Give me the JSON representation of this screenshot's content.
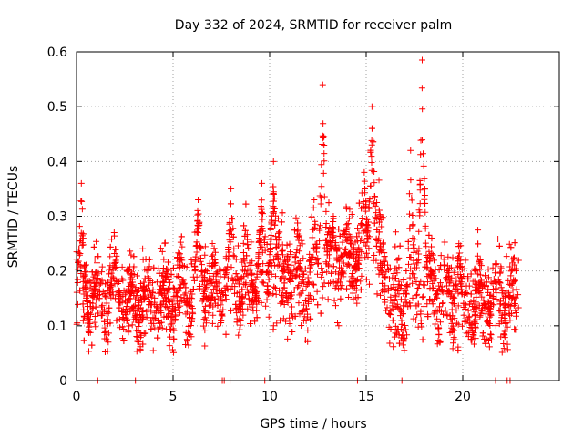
{
  "chart_data": {
    "type": "scatter",
    "title": "Day 332 of 2024, SRMTID for receiver palm",
    "xlabel": "GPS time / hours",
    "ylabel": "SRMTID / TECUs",
    "xlim": [
      0,
      25
    ],
    "ylim": [
      0,
      0.6
    ],
    "x_ticks": [
      0,
      5,
      10,
      15,
      20
    ],
    "x_tick_labels": [
      "0",
      "5",
      "10",
      "15",
      "20"
    ],
    "y_ticks": [
      0,
      0.1,
      0.2,
      0.3,
      0.4,
      0.5,
      0.6
    ],
    "y_tick_labels": [
      "0",
      "0.1",
      "0.2",
      "0.3",
      "0.4",
      "0.5",
      "0.6"
    ],
    "grid": true,
    "marker": "+",
    "color": "#ff0000",
    "x_range_hours": [
      0.0,
      22.9
    ],
    "approx_point_count": 3000,
    "zero_points_x": [
      1.1,
      3.05,
      7.55,
      7.65,
      7.95,
      9.75,
      14.55,
      16.85,
      21.7,
      22.3,
      22.45
    ],
    "peaks": [
      {
        "x": 0.25,
        "y": 0.36
      },
      {
        "x": 1.95,
        "y": 0.27
      },
      {
        "x": 6.3,
        "y": 0.33
      },
      {
        "x": 8.0,
        "y": 0.35
      },
      {
        "x": 9.6,
        "y": 0.36
      },
      {
        "x": 10.2,
        "y": 0.4
      },
      {
        "x": 12.3,
        "y": 0.33
      },
      {
        "x": 12.75,
        "y": 0.54
      },
      {
        "x": 13.3,
        "y": 0.3
      },
      {
        "x": 14.9,
        "y": 0.38
      },
      {
        "x": 15.3,
        "y": 0.5
      },
      {
        "x": 17.3,
        "y": 0.42
      },
      {
        "x": 17.9,
        "y": 0.585
      },
      {
        "x": 19.8,
        "y": 0.25
      }
    ],
    "baseline_profile": [
      {
        "x": 0,
        "y": 0.15
      },
      {
        "x": 2,
        "y": 0.15
      },
      {
        "x": 4,
        "y": 0.14
      },
      {
        "x": 6,
        "y": 0.17
      },
      {
        "x": 8,
        "y": 0.18
      },
      {
        "x": 10,
        "y": 0.19
      },
      {
        "x": 12,
        "y": 0.18
      },
      {
        "x": 13.5,
        "y": 0.22
      },
      {
        "x": 15.5,
        "y": 0.24
      },
      {
        "x": 16.5,
        "y": 0.14
      },
      {
        "x": 18,
        "y": 0.17
      },
      {
        "x": 20,
        "y": 0.14
      },
      {
        "x": 22.9,
        "y": 0.15
      }
    ]
  }
}
